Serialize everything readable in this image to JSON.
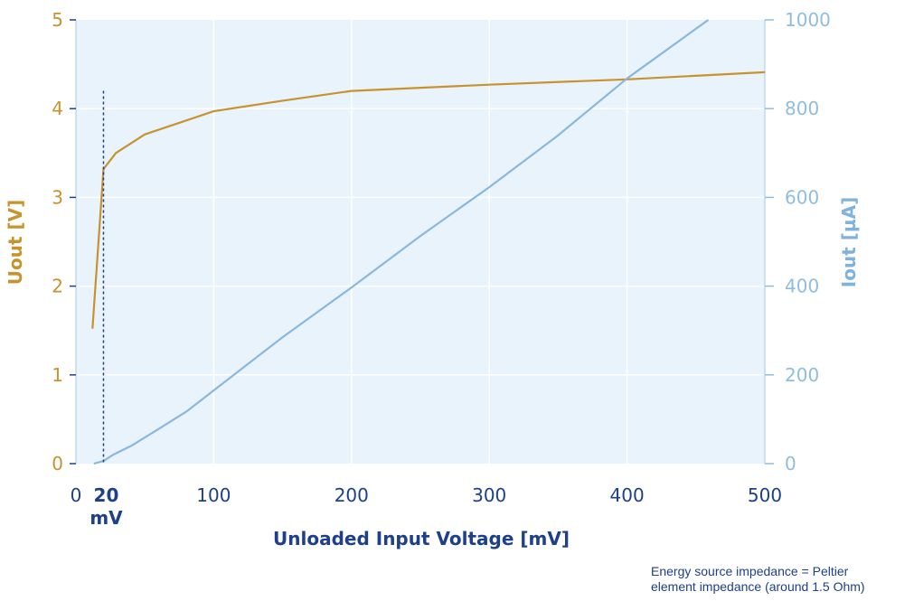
{
  "chart_data": {
    "type": "line",
    "xlabel": "Unloaded Input Voltage [mV]",
    "ylabel_left": "Uout [V]",
    "ylabel_right": "Iout [µA]",
    "xlim": [
      0,
      500
    ],
    "ylim_left": [
      0,
      5
    ],
    "ylim_right": [
      0,
      1000
    ],
    "x_ticks": [
      "0",
      "100",
      "200",
      "300",
      "400",
      "500"
    ],
    "x_tick_values": [
      0,
      100,
      200,
      300,
      400,
      500
    ],
    "y_left_ticks": [
      "0",
      "1",
      "2",
      "3",
      "4",
      "5"
    ],
    "y_left_tick_values": [
      0,
      1,
      2,
      3,
      4,
      5
    ],
    "y_right_ticks": [
      "0",
      "200",
      "400",
      "600",
      "800",
      "1000"
    ],
    "y_right_tick_values": [
      0,
      200,
      400,
      600,
      800,
      1000
    ],
    "grid": true,
    "marker": {
      "x": 20,
      "label_value": "20",
      "label_unit": "mV",
      "y_top": 4.2
    },
    "series": [
      {
        "axis": "left",
        "color": "#c8922e",
        "x": [
          12,
          20,
          29,
          50,
          100,
          150,
          200,
          300,
          400,
          500
        ],
        "y": [
          1.52,
          3.32,
          3.5,
          3.71,
          3.97,
          4.09,
          4.2,
          4.27,
          4.33,
          4.41
        ]
      },
      {
        "axis": "right",
        "color": "#8ab8dd",
        "x": [
          13,
          20,
          27,
          40,
          60,
          80,
          100,
          150,
          200,
          250,
          300,
          350,
          400,
          450,
          459
        ],
        "y": [
          0,
          6,
          20,
          40,
          78,
          117,
          165,
          285,
          397,
          513,
          623,
          740,
          868,
          980,
          1000
        ]
      }
    ],
    "annotation": [
      "Energy source impedance = Peltier",
      "element impedance (around 1.5 Ohm)"
    ]
  }
}
